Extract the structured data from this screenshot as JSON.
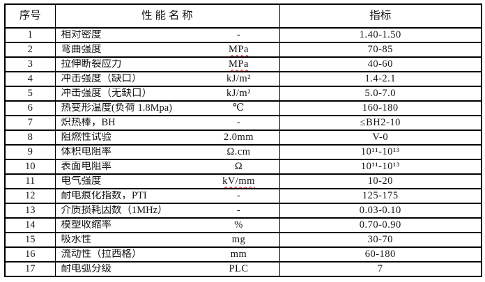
{
  "table": {
    "headers": {
      "no": "序号",
      "name": "性 能 名 称",
      "index": "指标"
    },
    "rows": [
      {
        "no": "1",
        "name": "相对密度",
        "unit": "-",
        "unit_squiggle": false,
        "value": "1.40-1.50"
      },
      {
        "no": "2",
        "name": "弯曲强度",
        "unit": "MPa",
        "unit_squiggle": true,
        "value": "70-85"
      },
      {
        "no": "3",
        "name": "拉伸断裂应力",
        "unit": "MPa",
        "unit_squiggle": true,
        "value": "40-60"
      },
      {
        "no": "4",
        "name": "冲击强度（缺口）",
        "unit": "kJ/m²",
        "unit_squiggle": false,
        "value": "1.4-2.1"
      },
      {
        "no": "5",
        "name": "冲击强度（无缺口）",
        "unit": "kJ/m²",
        "unit_squiggle": false,
        "value": "5.0-7.0"
      },
      {
        "no": "6",
        "name": "热变形温度(负荷 1.8Mpa)",
        "unit": "℃",
        "unit_squiggle": false,
        "value": "160-180"
      },
      {
        "no": "7",
        "name": "炽热棒，BH",
        "unit": "-",
        "unit_squiggle": false,
        "value": "≤BH2-10"
      },
      {
        "no": "8",
        "name": "阻燃性试验",
        "unit": "2.0mm",
        "unit_squiggle": false,
        "value": "V-0"
      },
      {
        "no": "9",
        "name": "体积电阻率",
        "unit": "Ω.cm",
        "unit_squiggle": false,
        "value": "10¹¹-10¹³"
      },
      {
        "no": "10",
        "name": "表面电阻率",
        "unit": "Ω",
        "unit_squiggle": false,
        "value": "10¹¹-10¹³"
      },
      {
        "no": "11",
        "name": "电气强度",
        "unit": "kV/mm",
        "unit_squiggle": true,
        "value": "10-20"
      },
      {
        "no": "12",
        "name": "耐电痕化指数，PTI",
        "unit": "-",
        "unit_squiggle": false,
        "value": "125-175"
      },
      {
        "no": "13",
        "name": "介质损耗因数（1MHz）",
        "unit": "-",
        "unit_squiggle": false,
        "value": "0.03-0.10"
      },
      {
        "no": "14",
        "name": "模塑收缩率",
        "unit": "%",
        "unit_squiggle": false,
        "value": "0.70-0.90"
      },
      {
        "no": "15",
        "name": "吸水性",
        "unit": "mg",
        "unit_squiggle": false,
        "value": "30-70"
      },
      {
        "no": "16",
        "name": "流动性（拉西格）",
        "unit": "mm",
        "unit_squiggle": false,
        "value": "60-180"
      },
      {
        "no": "17",
        "name": "耐电弧分级",
        "unit": "PLC",
        "unit_squiggle": false,
        "value": "7"
      }
    ]
  },
  "colors": {
    "border": "#000000",
    "text": "#151515",
    "spellcheck_underline": "#e00000",
    "background": "#ffffff"
  }
}
